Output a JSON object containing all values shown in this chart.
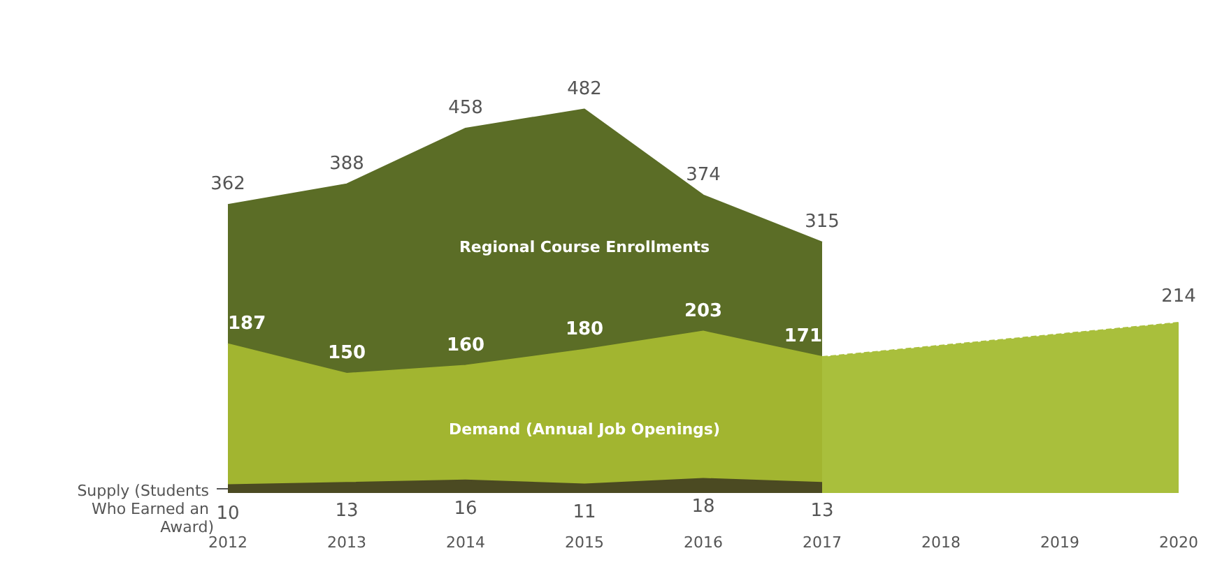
{
  "chart_data": {
    "type": "area",
    "categories": [
      "2012",
      "2013",
      "2014",
      "2015",
      "2016",
      "2017",
      "2018",
      "2019",
      "2020"
    ],
    "data_labels": true,
    "grid": false,
    "legend": false,
    "series": [
      {
        "name": "Regional Course Enrollments",
        "color": "#5b6d26",
        "values": [
          362,
          388,
          458,
          482,
          374,
          315,
          null,
          null,
          null
        ]
      },
      {
        "name": "Demand (Annual Job Openings)",
        "color": "#a2b530",
        "values": [
          187,
          150,
          160,
          180,
          203,
          171,
          null,
          null,
          null
        ]
      },
      {
        "color": "#a9bf3c",
        "line_style": "dashed",
        "values": [
          null,
          null,
          null,
          null,
          null,
          171,
          null,
          null,
          214
        ],
        "value_labels": [
          null,
          null,
          null,
          null,
          null,
          null,
          null,
          null,
          "214"
        ]
      },
      {
        "name": "Supply (Students Who Earned an Award)",
        "color": "#4b4a22",
        "values": [
          10,
          13,
          16,
          11,
          18,
          13,
          null,
          null,
          null
        ]
      }
    ]
  }
}
